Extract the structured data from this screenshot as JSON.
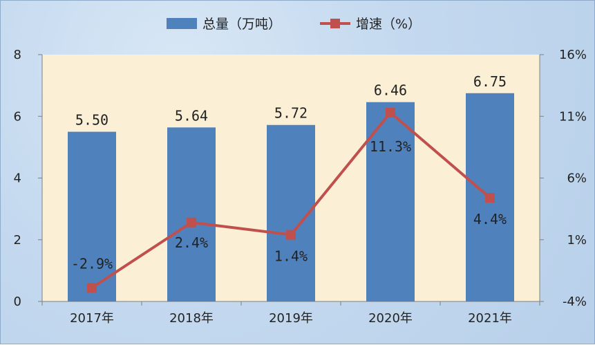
{
  "chart_data": {
    "type": "bar+line",
    "categories": [
      "2017年",
      "2018年",
      "2019年",
      "2020年",
      "2021年"
    ],
    "series": [
      {
        "name": "总量（万吨）",
        "type": "bar",
        "axis": "left",
        "values": [
          5.5,
          5.64,
          5.72,
          6.46,
          6.75
        ],
        "labels": [
          "5.50",
          "5.64",
          "5.72",
          "6.46",
          "6.75"
        ],
        "color": "#4f81bd"
      },
      {
        "name": "增速（%）",
        "type": "line",
        "axis": "right",
        "values": [
          -2.9,
          2.4,
          1.4,
          11.3,
          4.4
        ],
        "labels": [
          "-2.9%",
          "2.4%",
          "1.4%",
          "11.3%",
          "4.4%"
        ],
        "color": "#c0504d"
      }
    ],
    "y_left": {
      "min": 0,
      "max": 8,
      "ticks": [
        "0",
        "2",
        "4",
        "6",
        "8"
      ]
    },
    "y_right": {
      "min": -4,
      "max": 16,
      "ticks": [
        "-4%",
        "1%",
        "6%",
        "11%",
        "16%"
      ]
    },
    "legend_position": "top",
    "grid": false,
    "plot_background": "#fbf0d6",
    "page_background": "#c4d9ef"
  }
}
